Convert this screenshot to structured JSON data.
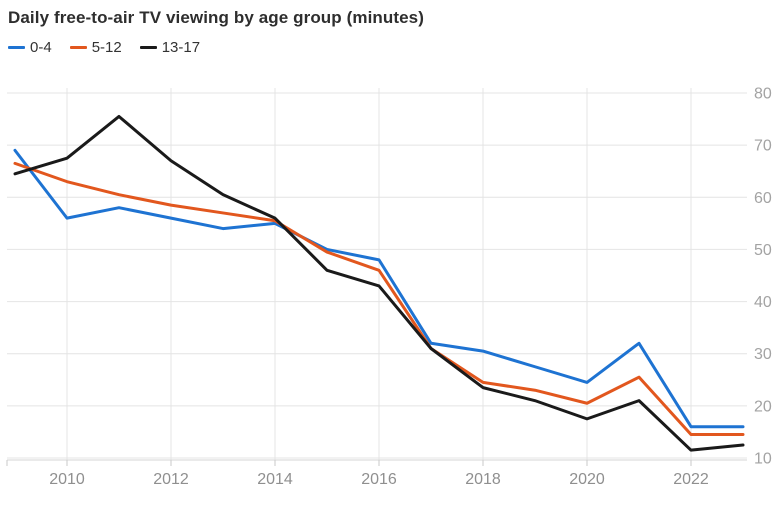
{
  "chart": {
    "title": "Daily free-to-air TV viewing by age group (minutes)"
  },
  "chart_data": {
    "type": "line",
    "title": "Daily free-to-air TV viewing by age group (minutes)",
    "x": [
      2009,
      2010,
      2011,
      2012,
      2013,
      2014,
      2015,
      2016,
      2017,
      2018,
      2019,
      2020,
      2021,
      2022,
      2023
    ],
    "series": [
      {
        "name": "0-4",
        "color": "#1e73d2",
        "values": [
          69,
          56,
          58,
          56,
          54,
          55,
          50,
          48,
          32,
          30.5,
          27.5,
          24.5,
          32,
          16,
          16
        ]
      },
      {
        "name": "5-12",
        "color": "#e2571e",
        "values": [
          66.5,
          63,
          60.5,
          58.5,
          57,
          55.5,
          49.5,
          46,
          31,
          24.5,
          23,
          20.5,
          25.5,
          14.5,
          14.5
        ]
      },
      {
        "name": "13-17",
        "color": "#1a1a1a",
        "values": [
          64.5,
          67.5,
          75.5,
          67,
          60.5,
          56,
          46,
          43,
          31,
          23.5,
          21,
          17.5,
          21,
          11.5,
          12.5
        ]
      }
    ],
    "xlabel": "",
    "ylabel": "",
    "ylim": [
      10,
      80
    ],
    "y_ticks": [
      10,
      20,
      30,
      40,
      50,
      60,
      70,
      80
    ],
    "x_tick_labels": [
      "2010",
      "2012",
      "2014",
      "2016",
      "2018",
      "2020",
      "2022"
    ],
    "x_tick_years": [
      2010,
      2012,
      2014,
      2016,
      2018,
      2020,
      2022
    ],
    "grid": true,
    "y_axis_side": "right",
    "legend_position": "top-left"
  },
  "colors": {
    "grid": "#e4e4e4",
    "axis_line": "#d6d6d6",
    "tick": "#c9c9c9",
    "y_tick_label": "#a3a3a3",
    "x_tick_label": "#8f8f8f",
    "title": "#2e2e2e",
    "background": "#ffffff"
  }
}
